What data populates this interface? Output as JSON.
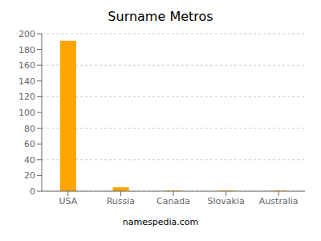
{
  "chart_data": {
    "type": "bar",
    "title": "Surname Metros",
    "categories": [
      "USA",
      "Russia",
      "Canada",
      "Slovakia",
      "Australia"
    ],
    "values": [
      191,
      5,
      1,
      1,
      1
    ],
    "color": "#FFA500",
    "ylim": [
      0,
      200
    ],
    "yticks": [
      0,
      20,
      40,
      60,
      80,
      100,
      120,
      140,
      160,
      180,
      200
    ],
    "grid": true,
    "annotations": [
      "namespedia.com"
    ]
  }
}
